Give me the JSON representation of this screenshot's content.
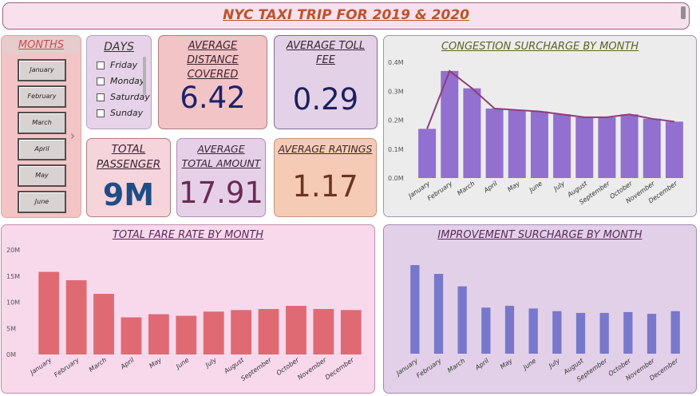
{
  "header": {
    "title": "NYC TAXI TRIP FOR 2019 & 2020"
  },
  "months_slicer": {
    "title": "MONTHS",
    "items": [
      "January",
      "February",
      "March",
      "April",
      "May",
      "June"
    ]
  },
  "days_slicer": {
    "title": "DAYS",
    "items": [
      "Friday",
      "Monday",
      "Saturday",
      "Sunday"
    ]
  },
  "kpis": {
    "avg_distance": {
      "label": "AVERAGE DISTANCE COVERED",
      "value": "6.42"
    },
    "avg_toll": {
      "label": "AVERAGE TOLL FEE",
      "value": "0.29"
    },
    "total_passenger": {
      "label": "TOTAL PASSENGER",
      "value": "9M"
    },
    "avg_total_amount": {
      "label": "AVERAGE TOTAL AMOUNT",
      "value": "17.91"
    },
    "avg_ratings": {
      "label": "AVERAGE RATINGS",
      "value": "1.17"
    }
  },
  "colors": {
    "congestion_bar": "#9170cf",
    "congestion_line": "#8e3c78",
    "fare_bar": "#e06a73",
    "improvement_bar": "#7777cc"
  },
  "chart_data": [
    {
      "id": "congestion",
      "type": "bar",
      "title": "CONGESTION SURCHARGE BY MONTH",
      "categories": [
        "January",
        "February",
        "March",
        "April",
        "May",
        "June",
        "July",
        "August",
        "September",
        "October",
        "November",
        "December"
      ],
      "values": [
        0.17,
        0.37,
        0.31,
        0.24,
        0.235,
        0.23,
        0.22,
        0.21,
        0.21,
        0.22,
        0.205,
        0.195
      ],
      "line_values": [
        0.17,
        0.37,
        0.31,
        0.24,
        0.235,
        0.23,
        0.22,
        0.21,
        0.21,
        0.22,
        0.205,
        0.195
      ],
      "y_ticks": [
        "0.0M",
        "0.1M",
        "0.2M",
        "0.3M",
        "0.4M"
      ],
      "ylim": [
        0,
        0.4
      ],
      "xlabel": "",
      "ylabel": ""
    },
    {
      "id": "fare",
      "type": "bar",
      "title": "TOTAL FARE RATE BY MONTH",
      "categories": [
        "January",
        "February",
        "March",
        "April",
        "May",
        "June",
        "July",
        "August",
        "September",
        "October",
        "November",
        "December"
      ],
      "values": [
        15.8,
        14.2,
        11.6,
        7.1,
        7.7,
        7.4,
        8.2,
        8.5,
        8.7,
        9.3,
        8.7,
        8.5
      ],
      "y_ticks": [
        "0M",
        "5M",
        "10M",
        "15M",
        "20M"
      ],
      "ylim": [
        0,
        20
      ],
      "xlabel": "",
      "ylabel": ""
    },
    {
      "id": "improvement",
      "type": "bar",
      "title": "IMPROVEMENT SURCHARGE BY MONTH",
      "categories": [
        "January",
        "February",
        "March",
        "April",
        "May",
        "June",
        "July",
        "August",
        "September",
        "October",
        "November",
        "December"
      ],
      "values": [
        100,
        90,
        76,
        52,
        54,
        51,
        48,
        46,
        46,
        47,
        45,
        48
      ],
      "ylim": [
        0,
        100
      ],
      "xlabel": "",
      "ylabel": ""
    }
  ]
}
